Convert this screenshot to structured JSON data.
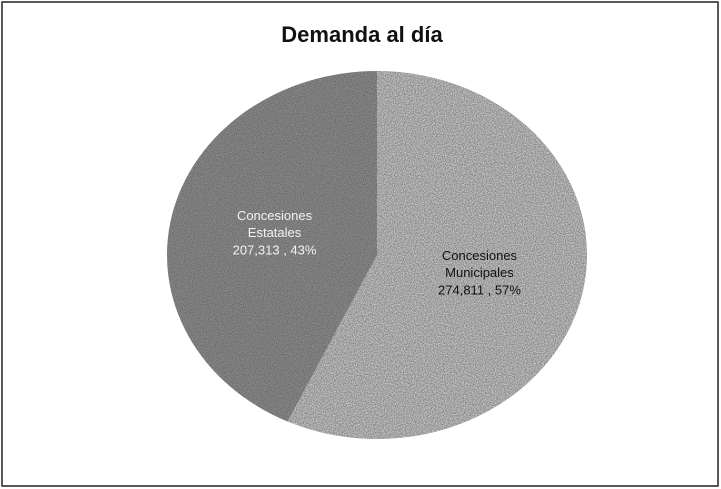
{
  "chart_data": {
    "type": "pie",
    "title": "Demanda al día",
    "categories": [
      "Concesiones Municipales",
      "Concesiones Estatales"
    ],
    "values": [
      274811,
      207313
    ],
    "value_labels": [
      "274,811 , 57%",
      "207,313 , 43%"
    ],
    "colors": [
      "#e6e6e6",
      "#4e4e4e"
    ],
    "label_colors": [
      "#111111",
      "#f2f2f2"
    ],
    "start_angle": 0,
    "direction": "clockwise"
  }
}
